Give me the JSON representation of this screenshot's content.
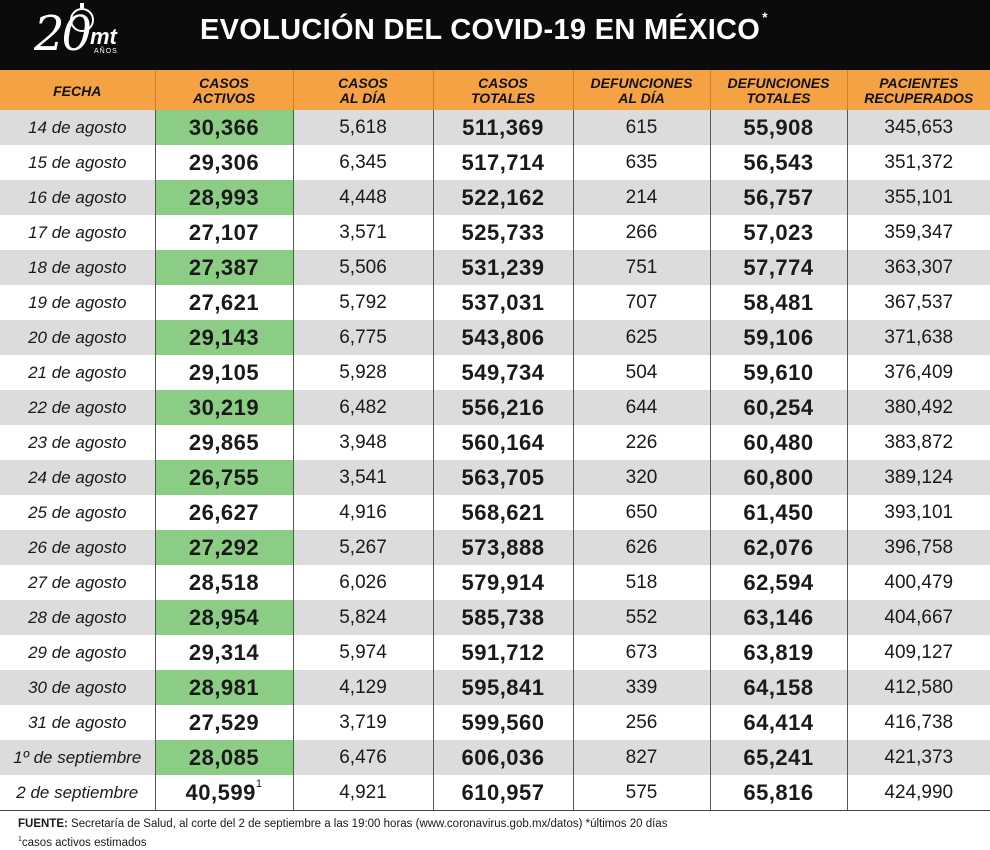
{
  "header": {
    "logo_number": "20",
    "logo_brand": "mt",
    "logo_sub": "AÑOS",
    "title": "EVOLUCIÓN DEL COVID-19 EN MÉXICO",
    "title_mark": "*"
  },
  "table": {
    "columns": [
      {
        "line1": "FECHA",
        "line2": ""
      },
      {
        "line1": "CASOS",
        "line2": "ACTIVOS"
      },
      {
        "line1": "CASOS",
        "line2": "AL DÍA"
      },
      {
        "line1": "CASOS",
        "line2": "TOTALES"
      },
      {
        "line1": "DEFUNCIONES",
        "line2": "AL DÍA"
      },
      {
        "line1": "DEFUNCIONES",
        "line2": "TOTALES"
      },
      {
        "line1": "PACIENTES",
        "line2": "RECUPERADOS"
      }
    ],
    "rows": [
      {
        "fecha": "14 de agosto",
        "activos": "30,366",
        "casos_dia": "5,618",
        "casos_totales": "511,369",
        "def_dia": "615",
        "def_totales": "55,908",
        "recuperados": "345,653"
      },
      {
        "fecha": "15 de agosto",
        "activos": "29,306",
        "casos_dia": "6,345",
        "casos_totales": "517,714",
        "def_dia": "635",
        "def_totales": "56,543",
        "recuperados": "351,372"
      },
      {
        "fecha": "16 de agosto",
        "activos": "28,993",
        "casos_dia": "4,448",
        "casos_totales": "522,162",
        "def_dia": "214",
        "def_totales": "56,757",
        "recuperados": "355,101"
      },
      {
        "fecha": "17 de agosto",
        "activos": "27,107",
        "casos_dia": "3,571",
        "casos_totales": "525,733",
        "def_dia": "266",
        "def_totales": "57,023",
        "recuperados": "359,347"
      },
      {
        "fecha": "18 de agosto",
        "activos": "27,387",
        "casos_dia": "5,506",
        "casos_totales": "531,239",
        "def_dia": "751",
        "def_totales": "57,774",
        "recuperados": "363,307"
      },
      {
        "fecha": "19 de agosto",
        "activos": "27,621",
        "casos_dia": "5,792",
        "casos_totales": "537,031",
        "def_dia": "707",
        "def_totales": "58,481",
        "recuperados": "367,537"
      },
      {
        "fecha": "20 de agosto",
        "activos": "29,143",
        "casos_dia": "6,775",
        "casos_totales": "543,806",
        "def_dia": "625",
        "def_totales": "59,106",
        "recuperados": "371,638"
      },
      {
        "fecha": "21 de agosto",
        "activos": "29,105",
        "casos_dia": "5,928",
        "casos_totales": "549,734",
        "def_dia": "504",
        "def_totales": "59,610",
        "recuperados": "376,409"
      },
      {
        "fecha": "22 de agosto",
        "activos": "30,219",
        "casos_dia": "6,482",
        "casos_totales": "556,216",
        "def_dia": "644",
        "def_totales": "60,254",
        "recuperados": "380,492"
      },
      {
        "fecha": "23 de agosto",
        "activos": "29,865",
        "casos_dia": "3,948",
        "casos_totales": "560,164",
        "def_dia": "226",
        "def_totales": "60,480",
        "recuperados": "383,872"
      },
      {
        "fecha": "24 de agosto",
        "activos": "26,755",
        "casos_dia": "3,541",
        "casos_totales": "563,705",
        "def_dia": "320",
        "def_totales": "60,800",
        "recuperados": "389,124"
      },
      {
        "fecha": "25 de agosto",
        "activos": "26,627",
        "casos_dia": "4,916",
        "casos_totales": "568,621",
        "def_dia": "650",
        "def_totales": "61,450",
        "recuperados": "393,101"
      },
      {
        "fecha": "26 de agosto",
        "activos": "27,292",
        "casos_dia": "5,267",
        "casos_totales": "573,888",
        "def_dia": "626",
        "def_totales": "62,076",
        "recuperados": "396,758"
      },
      {
        "fecha": "27 de agosto",
        "activos": "28,518",
        "casos_dia": "6,026",
        "casos_totales": "579,914",
        "def_dia": "518",
        "def_totales": "62,594",
        "recuperados": "400,479"
      },
      {
        "fecha": "28 de agosto",
        "activos": "28,954",
        "casos_dia": "5,824",
        "casos_totales": "585,738",
        "def_dia": "552",
        "def_totales": "63,146",
        "recuperados": "404,667"
      },
      {
        "fecha": "29 de agosto",
        "activos": "29,314",
        "casos_dia": "5,974",
        "casos_totales": "591,712",
        "def_dia": "673",
        "def_totales": "63,819",
        "recuperados": "409,127"
      },
      {
        "fecha": "30 de agosto",
        "activos": "28,981",
        "casos_dia": "4,129",
        "casos_totales": "595,841",
        "def_dia": "339",
        "def_totales": "64,158",
        "recuperados": "412,580"
      },
      {
        "fecha": "31 de agosto",
        "activos": "27,529",
        "casos_dia": "3,719",
        "casos_totales": "599,560",
        "def_dia": "256",
        "def_totales": "64,414",
        "recuperados": "416,738"
      },
      {
        "fecha": "1º de septiembre",
        "activos": "28,085",
        "casos_dia": "6,476",
        "casos_totales": "606,036",
        "def_dia": "827",
        "def_totales": "65,241",
        "recuperados": "421,373"
      },
      {
        "fecha": "2 de septiembre",
        "activos": "40,599",
        "activos_note": "1",
        "casos_dia": "4,921",
        "casos_totales": "610,957",
        "def_dia": "575",
        "def_totales": "65,816",
        "recuperados": "424,990"
      }
    ]
  },
  "footer": {
    "source_label": "FUENTE:",
    "source_text": "Secretaría de Salud, al corte del 2 de septiembre a las 19:00 horas (www.coronavirus.gob.mx/datos) *últimos 20 días",
    "note_mark": "1",
    "note_text": "casos activos estimados"
  },
  "colors": {
    "header_bg": "#0b0b0b",
    "column_header_bg": "#f4a244",
    "active_cases_bg": "#8ccd85",
    "striped_row_bg": "#dcdcdc"
  }
}
